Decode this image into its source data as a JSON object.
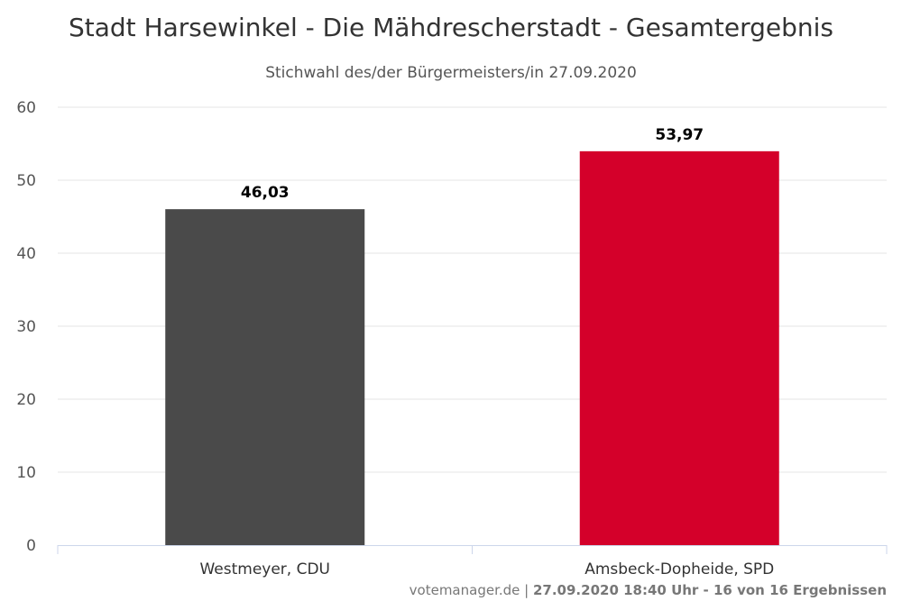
{
  "chart_data": {
    "type": "bar",
    "title": "Stadt Harsewinkel - Die Mähdrescherstadt - Gesamtergebnis",
    "subtitle": "Stichwahl des/der Bürgermeisters/in 27.09.2020",
    "categories": [
      "Westmeyer, CDU",
      "Amsbeck-Dopheide, SPD"
    ],
    "values": [
      46.03,
      53.97
    ],
    "value_labels": [
      "46,03",
      "53,97"
    ],
    "colors": [
      "#4a4a4a",
      "#d4002a"
    ],
    "ylim": [
      0,
      60
    ],
    "yticks": [
      0,
      10,
      20,
      30,
      40,
      50,
      60
    ],
    "grid": true,
    "legend": "none"
  },
  "credits": {
    "source": "votemanager.de",
    "separator": " | ",
    "status": "27.09.2020 18:40 Uhr - 16 von 16 Ergebnissen"
  }
}
